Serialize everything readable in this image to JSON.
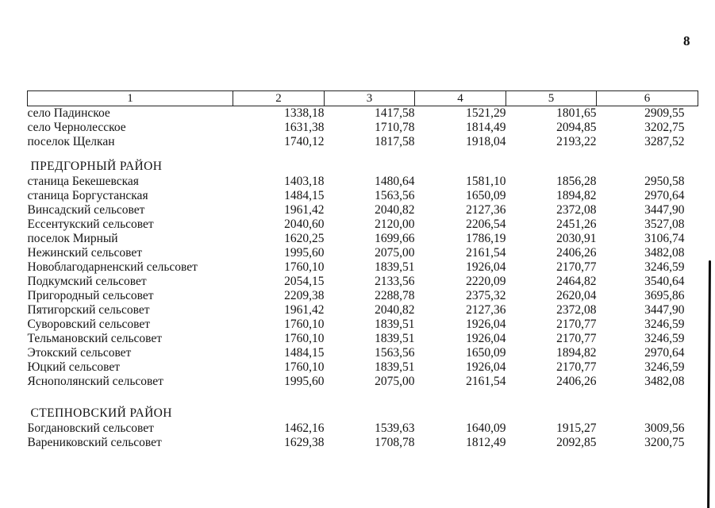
{
  "page_number": "8",
  "table": {
    "headers": [
      "1",
      "2",
      "3",
      "4",
      "5",
      "6"
    ],
    "sections": [
      {
        "title": "",
        "rows": [
          [
            "село Падинское",
            "1338,18",
            "1417,58",
            "1521,29",
            "1801,65",
            "2909,55"
          ],
          [
            "село Чернолесское",
            "1631,38",
            "1710,78",
            "1814,49",
            "2094,85",
            "3202,75"
          ],
          [
            "поселок Щелкан",
            "1740,12",
            "1817,58",
            "1918,04",
            "2193,22",
            "3287,52"
          ]
        ]
      },
      {
        "title": "ПРЕДГОРНЫЙ РАЙОН",
        "rows": [
          [
            "станица Бекешевская",
            "1403,18",
            "1480,64",
            "1581,10",
            "1856,28",
            "2950,58"
          ],
          [
            "станица Боргустанская",
            "1484,15",
            "1563,56",
            "1650,09",
            "1894,82",
            "2970,64"
          ],
          [
            "Винсадский сельсовет",
            "1961,42",
            "2040,82",
            "2127,36",
            "2372,08",
            "3447,90"
          ],
          [
            "Ессентукский сельсовет",
            "2040,60",
            "2120,00",
            "2206,54",
            "2451,26",
            "3527,08"
          ],
          [
            "поселок Мирный",
            "1620,25",
            "1699,66",
            "1786,19",
            "2030,91",
            "3106,74"
          ],
          [
            "Нежинский сельсовет",
            "1995,60",
            "2075,00",
            "2161,54",
            "2406,26",
            "3482,08"
          ],
          [
            "Новоблагодарненский сельсовет",
            "1760,10",
            "1839,51",
            "1926,04",
            "2170,77",
            "3246,59"
          ],
          [
            "Подкумский сельсовет",
            "2054,15",
            "2133,56",
            "2220,09",
            "2464,82",
            "3540,64"
          ],
          [
            "Пригородный сельсовет",
            "2209,38",
            "2288,78",
            "2375,32",
            "2620,04",
            "3695,86"
          ],
          [
            "Пятигорский сельсовет",
            "1961,42",
            "2040,82",
            "2127,36",
            "2372,08",
            "3447,90"
          ],
          [
            "Суворовский сельсовет",
            "1760,10",
            "1839,51",
            "1926,04",
            "2170,77",
            "3246,59"
          ],
          [
            "Тельмановский сельсовет",
            "1760,10",
            "1839,51",
            "1926,04",
            "2170,77",
            "3246,59"
          ],
          [
            "Этокский сельсовет",
            "1484,15",
            "1563,56",
            "1650,09",
            "1894,82",
            "2970,64"
          ],
          [
            "Юцкий сельсовет",
            "1760,10",
            "1839,51",
            "1926,04",
            "2170,77",
            "3246,59"
          ],
          [
            "Яснополянский сельсовет",
            "1995,60",
            "2075,00",
            "2161,54",
            "2406,26",
            "3482,08"
          ]
        ]
      },
      {
        "title": "СТЕПНОВСКИЙ РАЙОН",
        "rows": [
          [
            "Богдановский сельсовет",
            "1462,16",
            "1539,63",
            "1640,09",
            "1915,27",
            "3009,56"
          ],
          [
            "Вареников­ский сельсовет",
            "1629,38",
            "1708,78",
            "1812,49",
            "2092,85",
            "3200,75"
          ]
        ]
      }
    ]
  }
}
